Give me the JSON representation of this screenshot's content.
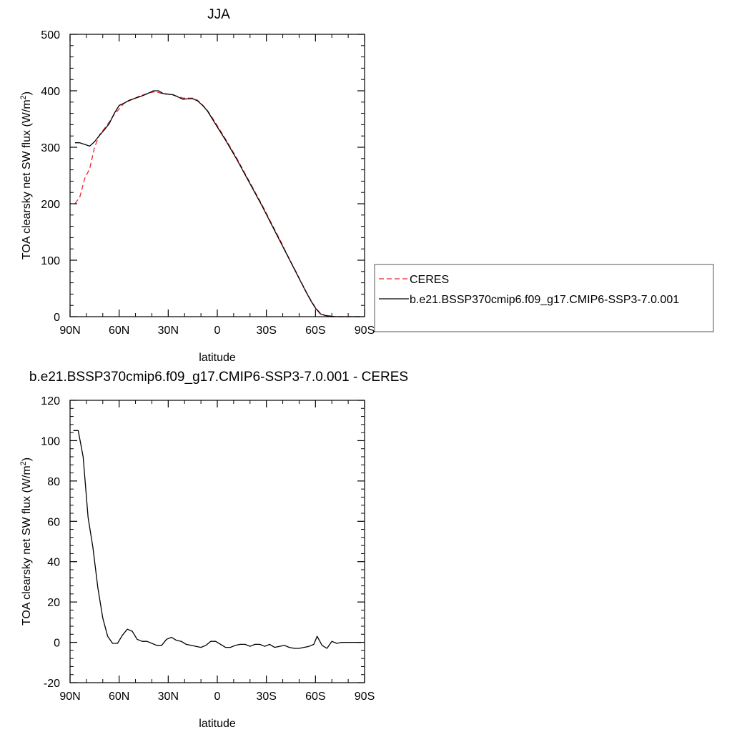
{
  "chart_data": [
    {
      "type": "line",
      "title": "JJA",
      "xlabel": "latitude",
      "ylabel_main": "TOA clearsky net SW flux (W/m",
      "ylabel_sup": "2",
      "ylabel_close": ")",
      "xlim": [
        90,
        -90
      ],
      "ylim": [
        0,
        500
      ],
      "x_ticks": [
        {
          "value": 90,
          "label": "90N"
        },
        {
          "value": 60,
          "label": "60N"
        },
        {
          "value": 30,
          "label": "30N"
        },
        {
          "value": 0,
          "label": "0"
        },
        {
          "value": -30,
          "label": "30S"
        },
        {
          "value": -60,
          "label": "60S"
        },
        {
          "value": -90,
          "label": "90S"
        }
      ],
      "y_ticks": [
        0,
        100,
        200,
        300,
        400,
        500
      ],
      "legend": {
        "placement": "right-of-plot"
      },
      "series": [
        {
          "name": "CERES",
          "color": "#e8242b",
          "dash": "dashed",
          "x": [
            87,
            84,
            81,
            78,
            75,
            72,
            69,
            66,
            63,
            60,
            57,
            54,
            51,
            48,
            45,
            42,
            39,
            36,
            33,
            30,
            27,
            24,
            21,
            18,
            15,
            12,
            9,
            6,
            3,
            0,
            -3,
            -6,
            -9,
            -12,
            -15,
            -18,
            -21,
            -24,
            -27,
            -30,
            -33,
            -36,
            -39,
            -42,
            -45,
            -48,
            -51,
            -54,
            -57,
            -60,
            -63,
            -66,
            -69,
            -72,
            -75,
            -78,
            -81,
            -84,
            -87
          ],
          "y": [
            200,
            212,
            245,
            262,
            300,
            322,
            333,
            345,
            358,
            368,
            378,
            382,
            386,
            390,
            393,
            396,
            398,
            397,
            394,
            394,
            392,
            390,
            387,
            387,
            387,
            383,
            375,
            365,
            352,
            338,
            324,
            310,
            295,
            280,
            264,
            248,
            232,
            216,
            200,
            183,
            166,
            149,
            132,
            114,
            97,
            80,
            63,
            46,
            30,
            16,
            6,
            2,
            0,
            0,
            0,
            0,
            0,
            0,
            0
          ]
        },
        {
          "name": "b.e21.BSSP370cmip6.f09_g17.CMIP6-SSP3-7.0.001",
          "color": "#000000",
          "dash": "solid",
          "x": [
            87,
            84,
            81,
            78,
            75,
            72,
            69,
            66,
            63,
            60,
            57,
            54,
            51,
            48,
            45,
            42,
            39,
            36,
            33,
            30,
            27,
            24,
            21,
            18,
            15,
            12,
            9,
            6,
            3,
            0,
            -3,
            -6,
            -9,
            -12,
            -15,
            -18,
            -21,
            -24,
            -27,
            -30,
            -33,
            -36,
            -39,
            -42,
            -45,
            -48,
            -51,
            -54,
            -57,
            -60,
            -63,
            -66,
            -69,
            -72,
            -75,
            -78,
            -81,
            -84,
            -87
          ],
          "y": [
            308,
            308,
            305,
            302,
            310,
            321,
            331,
            342,
            360,
            374,
            378,
            383,
            386,
            389,
            392,
            396,
            400,
            400,
            395,
            394,
            393,
            389,
            385,
            386,
            386,
            382,
            374,
            364,
            350,
            336,
            322,
            308,
            293,
            278,
            262,
            246,
            230,
            214,
            198,
            181,
            164,
            147,
            130,
            113,
            96,
            79,
            62,
            45,
            29,
            15,
            5,
            2,
            1,
            0,
            0,
            0,
            0,
            0,
            0
          ]
        }
      ]
    },
    {
      "type": "line",
      "title": "b.e21.BSSP370cmip6.f09_g17.CMIP6-SSP3-7.0.001 - CERES",
      "xlabel": "latitude",
      "ylabel_main": "TOA clearsky net SW flux (W/m",
      "ylabel_sup": "2",
      "ylabel_close": ")",
      "xlim": [
        90,
        -90
      ],
      "ylim": [
        -20,
        120
      ],
      "x_ticks": [
        {
          "value": 90,
          "label": "90N"
        },
        {
          "value": 60,
          "label": "60N"
        },
        {
          "value": 30,
          "label": "30N"
        },
        {
          "value": 0,
          "label": "0"
        },
        {
          "value": -30,
          "label": "30S"
        },
        {
          "value": -60,
          "label": "60S"
        },
        {
          "value": -90,
          "label": "90S"
        }
      ],
      "y_ticks": [
        -20,
        0,
        20,
        40,
        60,
        80,
        100,
        120
      ],
      "series": [
        {
          "color": "#000000",
          "dash": "solid",
          "x": [
            88,
            85,
            82,
            79,
            76,
            73,
            70,
            67,
            64,
            61,
            58,
            55,
            52,
            49,
            46,
            43,
            40,
            37,
            34,
            31,
            28,
            25,
            22,
            19,
            16,
            13,
            10,
            7,
            4,
            1,
            -2,
            -5,
            -8,
            -11,
            -14,
            -17,
            -20,
            -23,
            -26,
            -29,
            -32,
            -35,
            -38,
            -41,
            -44,
            -47,
            -50,
            -53,
            -56,
            -59,
            -61,
            -64,
            -67,
            -70,
            -73,
            -76,
            -79,
            -82,
            -85,
            -88
          ],
          "y": [
            105,
            105,
            92,
            62,
            47,
            27,
            12,
            3,
            -0.5,
            -0.5,
            3.5,
            6.5,
            5.5,
            1.5,
            0.5,
            0.5,
            -0.5,
            -1.5,
            -1.5,
            1.5,
            2.5,
            1,
            0.5,
            -1,
            -1.5,
            -2,
            -2.5,
            -1.5,
            0.5,
            0.5,
            -1,
            -2.5,
            -2.5,
            -1.5,
            -1,
            -1,
            -2,
            -1,
            -1,
            -2,
            -1,
            -2.5,
            -2,
            -1.5,
            -2.5,
            -3,
            -3,
            -2.5,
            -2,
            -1,
            3,
            -1.5,
            -3,
            0.5,
            -0.5,
            0,
            0,
            0,
            0,
            0
          ]
        }
      ]
    }
  ]
}
